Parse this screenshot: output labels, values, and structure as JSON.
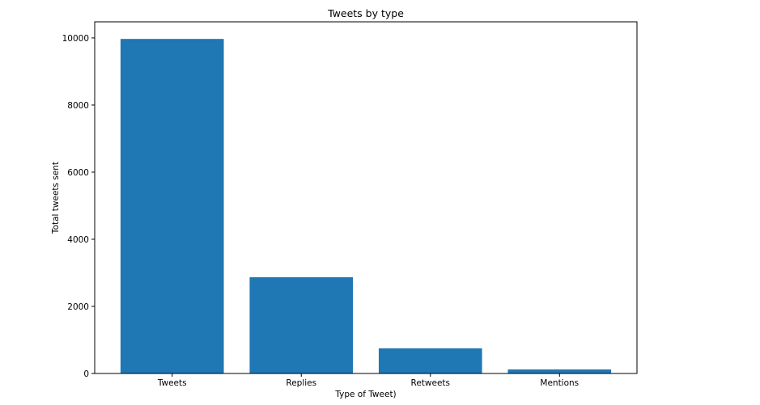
{
  "chart_data": {
    "type": "bar",
    "title": "Tweets by type",
    "xlabel": "Type of Tweet)",
    "ylabel": "Total tweets sent",
    "categories": [
      "Tweets",
      "Replies",
      "Retweets",
      "Mentions"
    ],
    "values": [
      9970,
      2870,
      750,
      120
    ],
    "ylim": [
      0,
      10480
    ],
    "yticks": [
      0,
      2000,
      4000,
      6000,
      8000,
      10000
    ],
    "grid": false,
    "legend": "none",
    "bar_color": "#1f77b4"
  }
}
